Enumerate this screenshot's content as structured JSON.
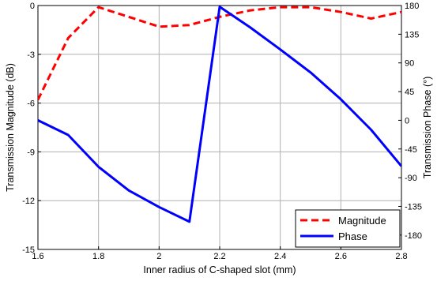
{
  "chart_data": {
    "type": "line",
    "xlabel": "Inner radius of C-shaped slot (mm)",
    "ylabel_left": "Transmission Magnitude (dB)",
    "ylabel_right": "Transmission Phase (°)",
    "xlim": [
      1.6,
      2.8
    ],
    "ylim_left": [
      -15,
      0
    ],
    "ylim_right": [
      -202.5,
      180
    ],
    "grid": true,
    "legend_position": "bottom-right",
    "x_ticks": [
      "1.6",
      "1.8",
      "2",
      "2.2",
      "2.4",
      "2.6",
      "2.8"
    ],
    "y_left_ticks": [
      "0",
      "-3",
      "-6",
      "-9",
      "-12",
      "-15"
    ],
    "y_right_ticks": [
      "180",
      "135",
      "90",
      "45",
      "0",
      "-45",
      "-90",
      "-135",
      "-180"
    ],
    "series": [
      {
        "name": "Magnitude",
        "axis": "left",
        "color": "#ff0000",
        "style": "dashed",
        "x": [
          1.6,
          1.7,
          1.8,
          1.9,
          2.0,
          2.1,
          2.2,
          2.3,
          2.4,
          2.5,
          2.6,
          2.7,
          2.8
        ],
        "y": [
          -5.8,
          -2.0,
          -0.1,
          -0.7,
          -1.3,
          -1.2,
          -0.7,
          -0.3,
          -0.1,
          -0.1,
          -0.4,
          -0.8,
          -0.4
        ]
      },
      {
        "name": "Phase",
        "axis": "right",
        "color": "#0000ff",
        "style": "solid",
        "x": [
          1.6,
          1.7,
          1.8,
          1.9,
          2.0,
          2.1,
          2.2,
          2.3,
          2.4,
          2.5,
          2.6,
          2.7,
          2.8
        ],
        "y": [
          0,
          -23,
          -73,
          -110,
          -136,
          -159,
          178,
          146,
          111,
          75,
          33,
          -15,
          -72
        ]
      }
    ]
  }
}
